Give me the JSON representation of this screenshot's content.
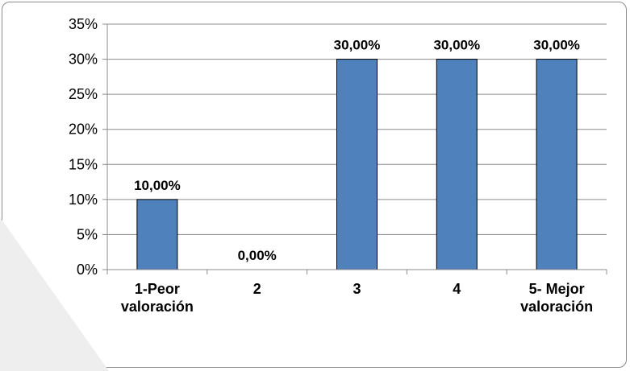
{
  "chart_data": {
    "type": "bar",
    "categories": [
      [
        "1-Peor",
        "valoración"
      ],
      [
        "2"
      ],
      [
        "3"
      ],
      [
        "4"
      ],
      [
        "5- Mejor",
        "valoración"
      ]
    ],
    "values": [
      10,
      0,
      30,
      30,
      30
    ],
    "data_labels": [
      "10,00%",
      "0,00%",
      "30,00%",
      "30,00%",
      "30,00%"
    ],
    "ylim": [
      0,
      35
    ],
    "y_ticks": [
      0,
      5,
      10,
      15,
      20,
      25,
      30,
      35
    ],
    "y_tick_labels": [
      "0%",
      "5%",
      "10%",
      "15%",
      "20%",
      "25%",
      "30%",
      "35%"
    ],
    "title": "",
    "xlabel": "",
    "ylabel": "",
    "grid": true,
    "legend": "none",
    "bar_color": "#4f81bd",
    "bar_edge_color": "#000000"
  }
}
